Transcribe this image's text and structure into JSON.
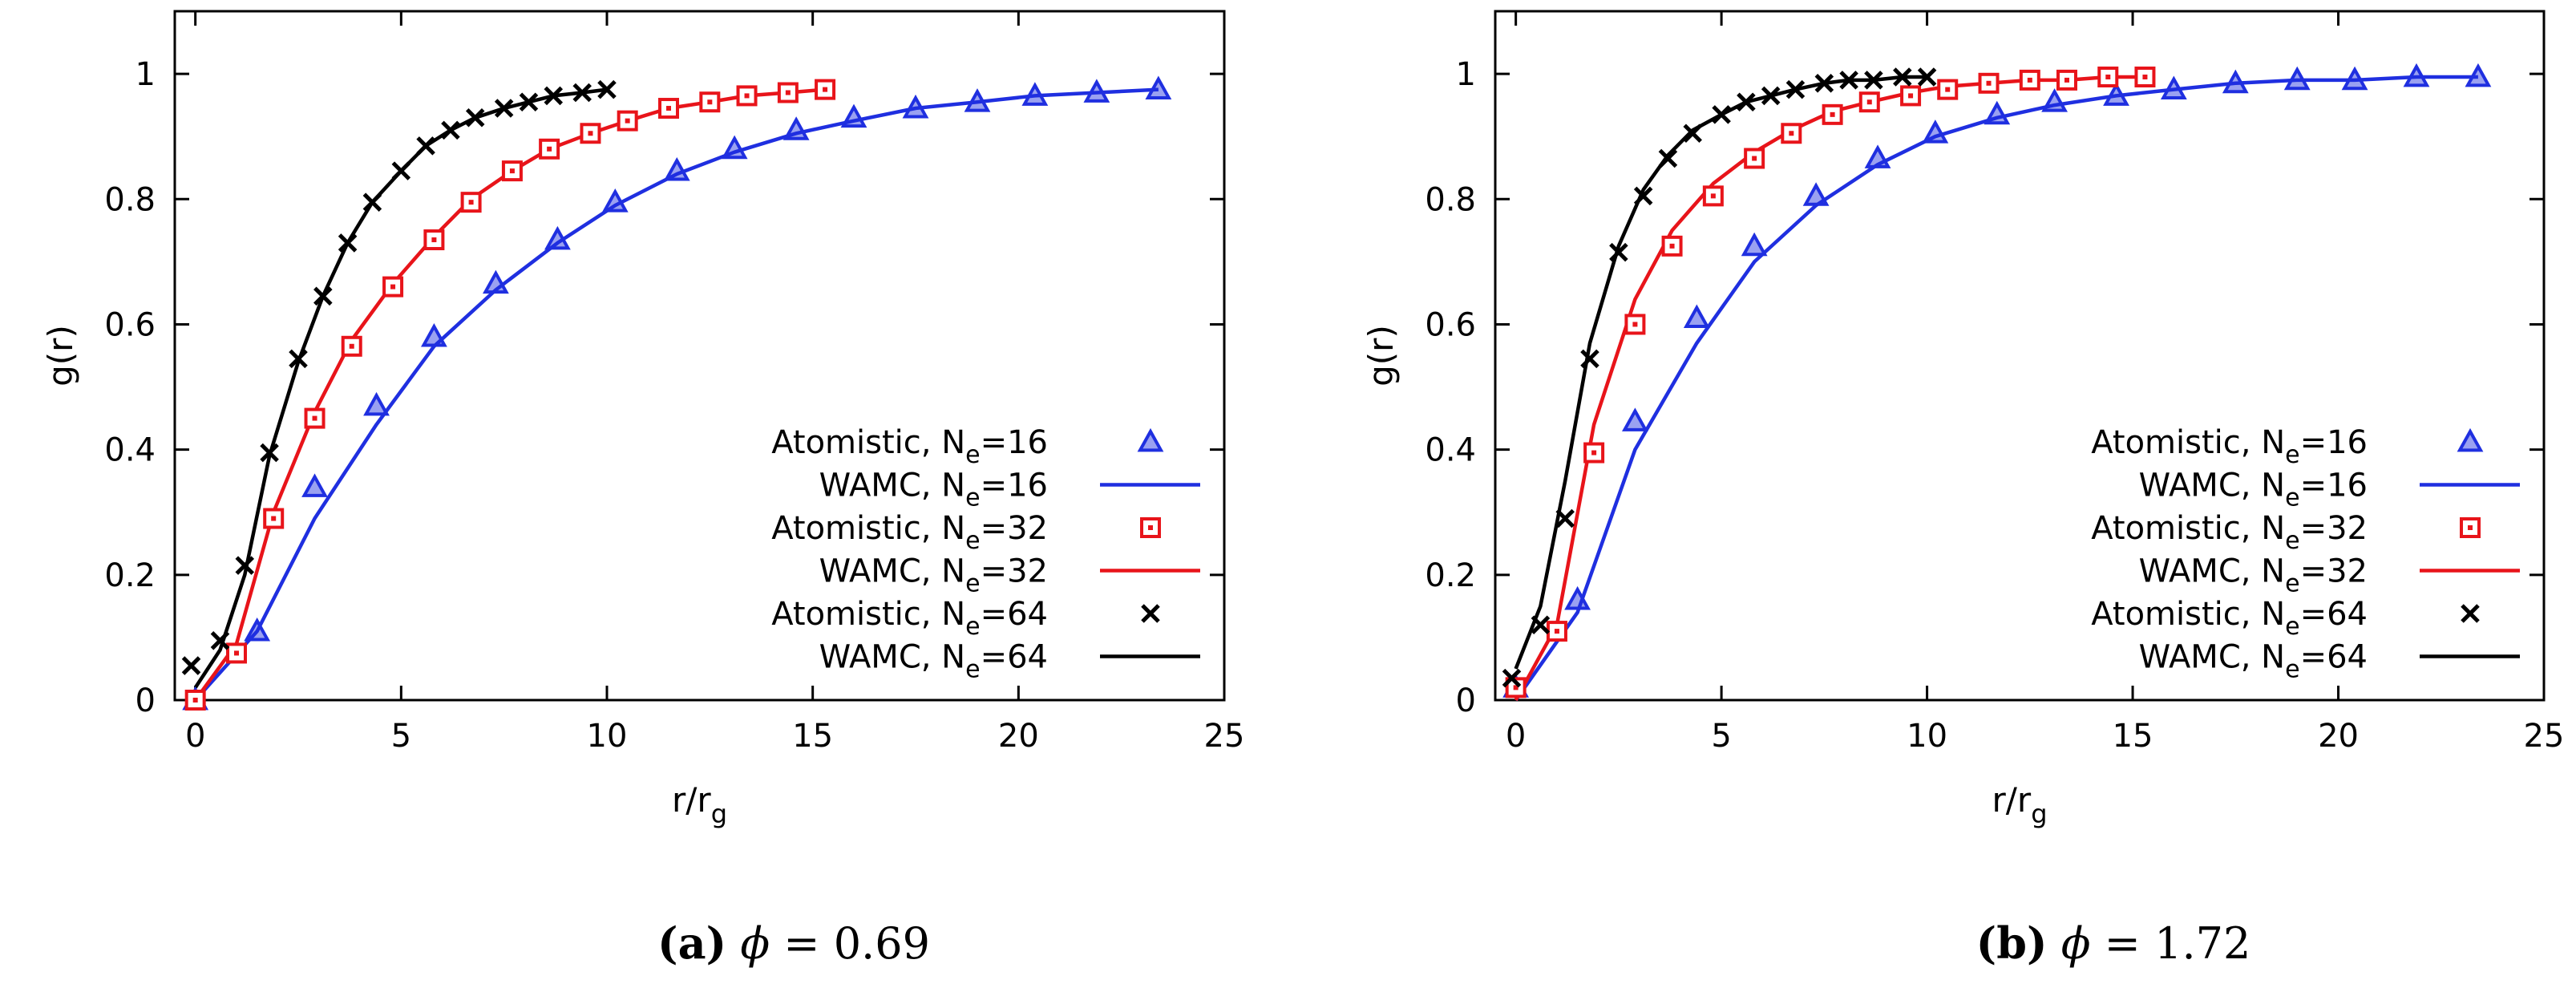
{
  "chart_data": [
    {
      "type": "line",
      "panel_label": "(a)",
      "caption_symbol": "ϕ",
      "caption_eq": " = ",
      "caption_value": "0.69",
      "xlabel": "r/r",
      "xlabel_sub": "g",
      "ylabel": "g(r)",
      "xlim": [
        -0.5,
        25
      ],
      "ylim": [
        0,
        1.1
      ],
      "xticks": [
        "0",
        "5",
        "10",
        "15",
        "20",
        "25"
      ],
      "xtick_values": [
        0,
        5,
        10,
        15,
        20,
        25
      ],
      "yticks": [
        "0",
        "0.2",
        "0.4",
        "0.6",
        "0.8",
        "1"
      ],
      "ytick_values": [
        0,
        0.2,
        0.4,
        0.6,
        0.8,
        1.0
      ],
      "legend_position": "bottom-right",
      "series": [
        {
          "name": "Atomistic, N",
          "sub": "e",
          "suffix": "=16",
          "kind": "points",
          "marker": "triangle",
          "color": "#1f2fe0",
          "x": [
            0,
            1.5,
            2.9,
            4.4,
            5.8,
            7.3,
            8.8,
            10.2,
            11.7,
            13.1,
            14.6,
            16.0,
            17.5,
            19.0,
            20.4,
            21.9,
            23.4
          ],
          "y": [
            0.0,
            0.11,
            0.34,
            0.47,
            0.58,
            0.665,
            0.735,
            0.795,
            0.845,
            0.88,
            0.91,
            0.93,
            0.945,
            0.955,
            0.965,
            0.97,
            0.975
          ]
        },
        {
          "name": "WAMC, N",
          "sub": "e",
          "suffix": "=16",
          "kind": "line",
          "color": "#1f2fe0",
          "x": [
            0,
            1.5,
            2.9,
            4.4,
            5.8,
            7.3,
            8.8,
            10.2,
            11.7,
            13.1,
            14.6,
            16.0,
            17.5,
            19.0,
            20.4,
            21.9,
            23.4
          ],
          "y": [
            0.0,
            0.11,
            0.29,
            0.44,
            0.565,
            0.655,
            0.73,
            0.79,
            0.84,
            0.875,
            0.905,
            0.925,
            0.945,
            0.955,
            0.965,
            0.97,
            0.975
          ]
        },
        {
          "name": "Atomistic, N",
          "sub": "e",
          "suffix": "=32",
          "kind": "points",
          "marker": "square",
          "color": "#e8141a",
          "x": [
            0,
            1,
            1.9,
            2.9,
            3.8,
            4.8,
            5.8,
            6.7,
            7.7,
            8.6,
            9.6,
            10.5,
            11.5,
            12.5,
            13.4,
            14.4,
            15.3
          ],
          "y": [
            0.0,
            0.075,
            0.29,
            0.45,
            0.565,
            0.66,
            0.735,
            0.795,
            0.845,
            0.88,
            0.905,
            0.925,
            0.945,
            0.955,
            0.965,
            0.97,
            0.975
          ]
        },
        {
          "name": "WAMC, N",
          "sub": "e",
          "suffix": "=32",
          "kind": "line",
          "color": "#e8141a",
          "x": [
            0,
            1,
            1.9,
            2.9,
            3.8,
            4.8,
            5.8,
            6.7,
            7.7,
            8.6,
            9.6,
            10.5,
            11.5,
            12.5,
            13.4,
            14.4,
            15.3
          ],
          "y": [
            0.0,
            0.09,
            0.3,
            0.46,
            0.575,
            0.665,
            0.74,
            0.8,
            0.845,
            0.88,
            0.905,
            0.925,
            0.945,
            0.955,
            0.965,
            0.97,
            0.975
          ]
        },
        {
          "name": "Atomistic, N",
          "sub": "e",
          "suffix": "=64",
          "kind": "points",
          "marker": "cross",
          "color": "#000000",
          "x": [
            -0.1,
            0.6,
            1.2,
            1.8,
            2.5,
            3.1,
            3.7,
            4.3,
            5.0,
            5.6,
            6.2,
            6.8,
            7.5,
            8.1,
            8.7,
            9.4,
            10.0
          ],
          "y": [
            0.055,
            0.095,
            0.215,
            0.395,
            0.545,
            0.645,
            0.73,
            0.795,
            0.845,
            0.885,
            0.91,
            0.93,
            0.945,
            0.955,
            0.965,
            0.97,
            0.975
          ]
        },
        {
          "name": "WAMC, N",
          "sub": "e",
          "suffix": "=64",
          "kind": "line",
          "color": "#000000",
          "x": [
            0,
            0.6,
            1.2,
            1.8,
            2.5,
            3.1,
            3.7,
            4.3,
            5.0,
            5.6,
            6.2,
            6.8,
            7.5,
            8.1,
            8.7,
            9.4,
            10.0
          ],
          "y": [
            0.02,
            0.08,
            0.2,
            0.39,
            0.54,
            0.645,
            0.73,
            0.795,
            0.845,
            0.885,
            0.91,
            0.93,
            0.945,
            0.955,
            0.965,
            0.97,
            0.975
          ]
        }
      ]
    },
    {
      "type": "line",
      "panel_label": "(b)",
      "caption_symbol": "ϕ",
      "caption_eq": " = ",
      "caption_value": "1.72",
      "xlabel": "r/r",
      "xlabel_sub": "g",
      "ylabel": "g(r)",
      "xlim": [
        -0.5,
        25
      ],
      "ylim": [
        0,
        1.1
      ],
      "xticks": [
        "0",
        "5",
        "10",
        "15",
        "20",
        "25"
      ],
      "xtick_values": [
        0,
        5,
        10,
        15,
        20,
        25
      ],
      "yticks": [
        "0",
        "0.2",
        "0.4",
        "0.6",
        "0.8",
        "1"
      ],
      "ytick_values": [
        0,
        0.2,
        0.4,
        0.6,
        0.8,
        1.0
      ],
      "legend_position": "bottom-right",
      "series": [
        {
          "name": "Atomistic, N",
          "sub": "e",
          "suffix": "=16",
          "kind": "points",
          "marker": "triangle",
          "color": "#1f2fe0",
          "x": [
            0,
            1.5,
            2.9,
            4.4,
            5.8,
            7.3,
            8.8,
            10.2,
            11.7,
            13.1,
            14.6,
            16.0,
            17.5,
            19.0,
            20.4,
            21.9,
            23.4
          ],
          "y": [
            0.02,
            0.16,
            0.445,
            0.61,
            0.725,
            0.805,
            0.865,
            0.905,
            0.935,
            0.955,
            0.965,
            0.975,
            0.985,
            0.99,
            0.99,
            0.995,
            0.995
          ]
        },
        {
          "name": "WAMC, N",
          "sub": "e",
          "suffix": "=16",
          "kind": "line",
          "color": "#1f2fe0",
          "x": [
            0,
            1.5,
            2.9,
            4.4,
            5.8,
            7.3,
            8.8,
            10.2,
            11.7,
            13.1,
            14.6,
            16.0,
            17.5,
            19.0,
            20.4,
            21.9,
            23.4
          ],
          "y": [
            0.0,
            0.14,
            0.4,
            0.57,
            0.7,
            0.79,
            0.855,
            0.9,
            0.93,
            0.95,
            0.965,
            0.975,
            0.985,
            0.99,
            0.99,
            0.995,
            0.995
          ]
        },
        {
          "name": "Atomistic, N",
          "sub": "e",
          "suffix": "=32",
          "kind": "points",
          "marker": "square",
          "color": "#e8141a",
          "x": [
            0,
            1,
            1.9,
            2.9,
            3.8,
            4.8,
            5.8,
            6.7,
            7.7,
            8.6,
            9.6,
            10.5,
            11.5,
            12.5,
            13.4,
            14.4,
            15.3
          ],
          "y": [
            0.02,
            0.11,
            0.395,
            0.6,
            0.725,
            0.805,
            0.865,
            0.905,
            0.935,
            0.955,
            0.965,
            0.975,
            0.985,
            0.99,
            0.99,
            0.995,
            0.995
          ]
        },
        {
          "name": "WAMC, N",
          "sub": "e",
          "suffix": "=32",
          "kind": "line",
          "color": "#e8141a",
          "x": [
            0,
            1,
            1.9,
            2.9,
            3.8,
            4.8,
            5.8,
            6.7,
            7.7,
            8.6,
            9.6,
            10.5,
            11.5,
            12.5,
            13.4,
            14.4,
            15.3
          ],
          "y": [
            0.0,
            0.12,
            0.44,
            0.64,
            0.75,
            0.825,
            0.875,
            0.91,
            0.94,
            0.955,
            0.97,
            0.98,
            0.985,
            0.99,
            0.99,
            0.995,
            0.995
          ]
        },
        {
          "name": "Atomistic, N",
          "sub": "e",
          "suffix": "=64",
          "kind": "points",
          "marker": "cross",
          "color": "#000000",
          "x": [
            -0.1,
            0.6,
            1.2,
            1.8,
            2.5,
            3.1,
            3.7,
            4.3,
            5.0,
            5.6,
            6.2,
            6.8,
            7.5,
            8.1,
            8.7,
            9.4,
            10.0
          ],
          "y": [
            0.035,
            0.12,
            0.29,
            0.545,
            0.715,
            0.805,
            0.865,
            0.905,
            0.935,
            0.955,
            0.965,
            0.975,
            0.985,
            0.99,
            0.99,
            0.995,
            0.995
          ]
        },
        {
          "name": "WAMC, N",
          "sub": "e",
          "suffix": "=64",
          "kind": "line",
          "color": "#000000",
          "x": [
            0,
            0.6,
            1.2,
            1.8,
            2.5,
            3.1,
            3.7,
            4.3,
            5.0,
            5.6,
            6.2,
            6.8,
            7.5,
            8.1,
            8.7,
            9.4,
            10.0
          ],
          "y": [
            0.05,
            0.15,
            0.35,
            0.57,
            0.725,
            0.815,
            0.87,
            0.91,
            0.935,
            0.955,
            0.965,
            0.975,
            0.985,
            0.99,
            0.99,
            0.995,
            0.995
          ]
        }
      ]
    }
  ]
}
